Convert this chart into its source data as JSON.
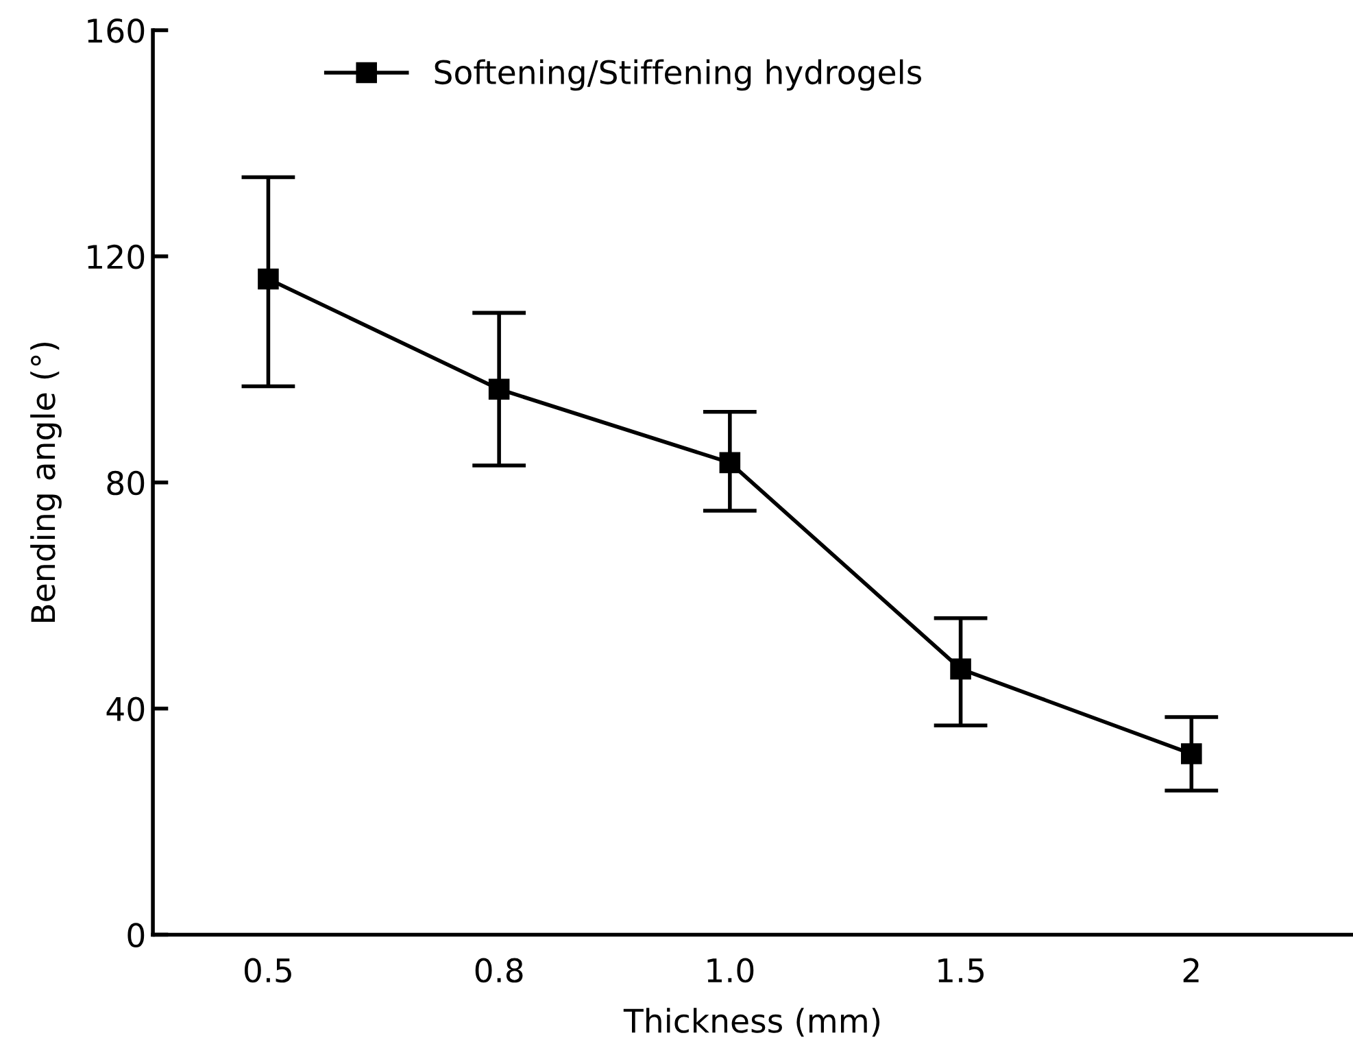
{
  "chart_data": {
    "type": "line",
    "xlabel": "Thickness (mm)",
    "ylabel": "Bending angle (°)",
    "categories": [
      "0.5",
      "0.8",
      "1.0",
      "1.5",
      "2"
    ],
    "series": [
      {
        "name": "Softening/Stiffening hydrogels",
        "color": "#000000",
        "values": [
          116,
          96.5,
          83.5,
          47,
          32
        ],
        "errors": [
          [
            97,
            134
          ],
          [
            83,
            110
          ],
          [
            75,
            92.5
          ],
          [
            37,
            56
          ],
          [
            25.5,
            38.5
          ]
        ]
      }
    ],
    "ylim": [
      0,
      160
    ],
    "yticks": [
      0,
      40,
      80,
      120,
      160
    ],
    "grid": false,
    "legend": "top left",
    "marker": "square",
    "line_style": "solid"
  }
}
